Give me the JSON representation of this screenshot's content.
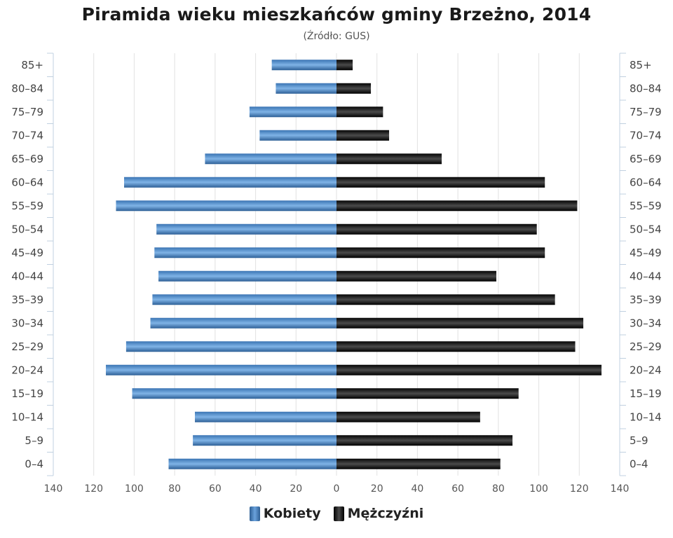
{
  "chart_data": {
    "type": "bar",
    "orientation": "horizontal-population-pyramid",
    "title": "Piramida wieku mieszkańców gminy Brzeżno, 2014",
    "subtitle": "(Źródło: GUS)",
    "categories": [
      "0–4",
      "5–9",
      "10–14",
      "15–19",
      "20–24",
      "25–29",
      "30–34",
      "35–39",
      "40–44",
      "45–49",
      "50–54",
      "55–59",
      "60–64",
      "65–69",
      "70–74",
      "75–79",
      "80–84",
      "85+"
    ],
    "series": [
      {
        "name": "Kobiety",
        "color": "#4a86c5",
        "side": "left",
        "values": [
          83,
          71,
          70,
          101,
          114,
          104,
          92,
          91,
          88,
          90,
          89,
          109,
          105,
          65,
          38,
          43,
          30,
          32
        ]
      },
      {
        "name": "Mężczyźni",
        "color": "#1a1a1a",
        "side": "right",
        "values": [
          81,
          87,
          71,
          90,
          131,
          118,
          122,
          108,
          79,
          103,
          99,
          119,
          103,
          52,
          26,
          23,
          17,
          8
        ]
      }
    ],
    "x_ticks": [
      "140",
      "120",
      "100",
      "80",
      "60",
      "40",
      "20",
      "0",
      "20",
      "40",
      "60",
      "80",
      "100",
      "120",
      "140"
    ],
    "xlim": [
      -140,
      140
    ],
    "grid": true,
    "legend_position": "bottom"
  }
}
